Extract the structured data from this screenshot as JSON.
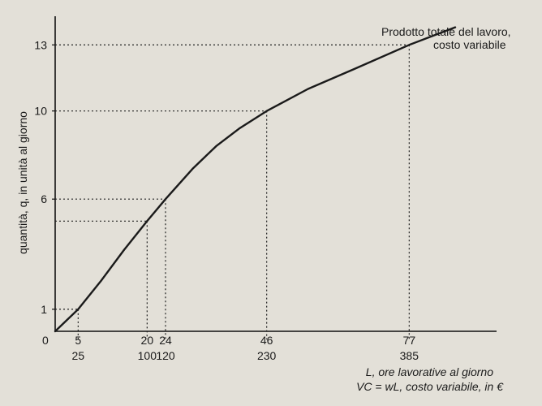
{
  "chart_data": {
    "type": "line",
    "title": "",
    "annotation_lines": [
      "Prodotto totale del lavoro,",
      "costo variabile"
    ],
    "ylabel": "quantità, q, in unità al giorno",
    "xlabel": "L, ore lavorative al giorno",
    "xlabel2": "VC = wL, costo variabile, in €",
    "origin_label": "0",
    "xlim": [
      0,
      96
    ],
    "ylim": [
      0,
      14.3
    ],
    "yticks": [
      1,
      6,
      10,
      13
    ],
    "xticks": [
      {
        "L": 5,
        "VC": 25
      },
      {
        "L": 20,
        "VC": 100
      },
      {
        "L": 24,
        "VC": 120
      },
      {
        "L": 46,
        "VC": 230
      },
      {
        "L": 77,
        "VC": 385
      }
    ],
    "series": [
      {
        "name": "Prodotto totale del lavoro",
        "color": "#1a1a1a",
        "x": [
          0,
          5,
          10,
          15,
          20,
          24,
          30,
          35,
          40,
          46,
          55,
          65,
          77,
          87
        ],
        "y": [
          0,
          1,
          2.3,
          3.7,
          5,
          6,
          7.4,
          8.4,
          9.2,
          10,
          11,
          11.9,
          13,
          13.8
        ]
      }
    ],
    "reference_points": [
      {
        "x": 5,
        "y": 1
      },
      {
        "x": 20,
        "y": 5
      },
      {
        "x": 24,
        "y": 6
      },
      {
        "x": 46,
        "y": 10
      },
      {
        "x": 77,
        "y": 13
      }
    ],
    "grid": false
  }
}
